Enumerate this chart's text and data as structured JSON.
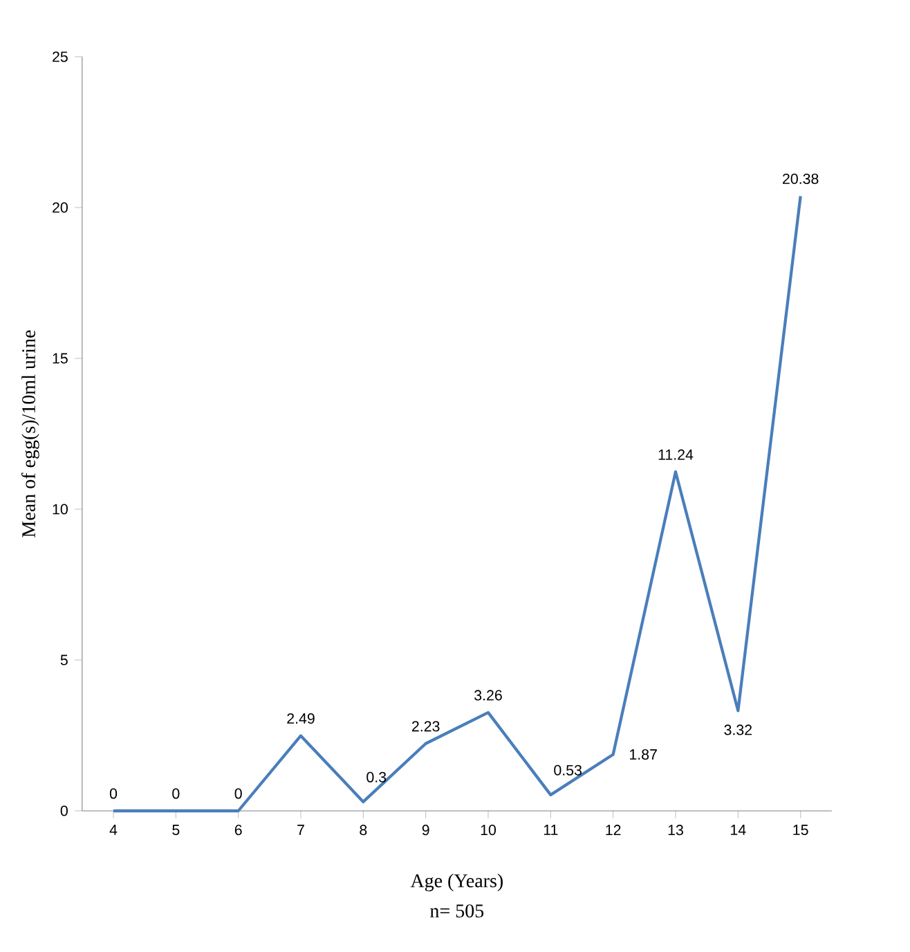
{
  "chart_data": {
    "type": "line",
    "xlabel": "Age (Years)",
    "ylabel": "Mean of egg(s)/10ml urine",
    "annotations": [
      "n= 505"
    ],
    "categories": [
      "4",
      "5",
      "6",
      "7",
      "8",
      "9",
      "10",
      "11",
      "12",
      "13",
      "14",
      "15"
    ],
    "values": [
      0,
      0,
      0,
      2.49,
      0.3,
      2.23,
      3.26,
      0.53,
      1.87,
      11.24,
      3.32,
      20.38
    ],
    "value_labels": [
      "0",
      "0",
      "0",
      "2.49",
      "0.3",
      "2.23",
      "3.26",
      "0.53",
      "1.87",
      "11.24",
      "3.32",
      "20.38"
    ],
    "color": "#4a7ebb",
    "ylim": [
      0,
      25
    ],
    "yticks": [
      0,
      5,
      10,
      15,
      20,
      25
    ],
    "grid": false,
    "marker": "none",
    "line_style": "solid"
  }
}
